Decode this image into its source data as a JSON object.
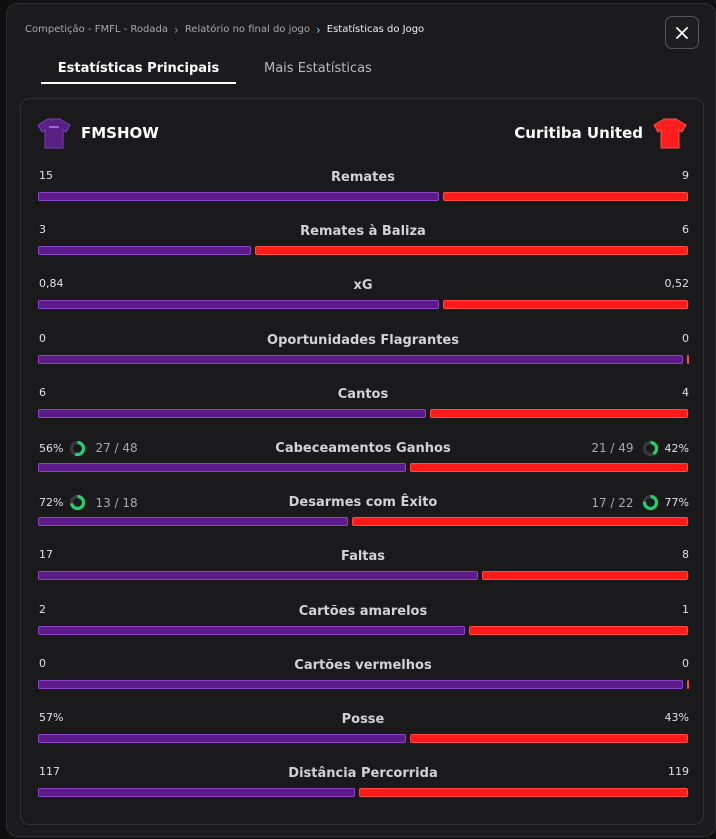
{
  "colors": {
    "home": "#5c1a8a",
    "away": "#ff1a1a",
    "ring_track": "#3a3a3e",
    "ring_fill": "#1fd46a"
  },
  "breadcrumb": [
    "Competição - FMFL - Rodada",
    "Relatório no final do jogo",
    "Estatísticas do Jogo"
  ],
  "tabs": [
    {
      "label": "Estatísticas Principais",
      "active": true
    },
    {
      "label": "Mais Estatísticas",
      "active": false
    }
  ],
  "teams": {
    "home": {
      "name": "FMSHOW",
      "shirt_color": "#5a1f86"
    },
    "away": {
      "name": "Curitiba United",
      "shirt_color": "#ff1d1d"
    }
  },
  "stats": [
    {
      "label": "Remates",
      "home": "15",
      "away": "9",
      "home_share": 0.62
    },
    {
      "label": "Remates à Baliza",
      "home": "3",
      "away": "6",
      "home_share": 0.33
    },
    {
      "label": "xG",
      "home": "0,84",
      "away": "0,52",
      "home_share": 0.62
    },
    {
      "label": "Oportunidades Flagrantes",
      "home": "0",
      "away": "0",
      "home_share": 0.995
    },
    {
      "label": "Cantos",
      "home": "6",
      "away": "4",
      "home_share": 0.6
    },
    {
      "label": "Cabeceamentos Ganhos",
      "home": "56%",
      "away": "42%",
      "home_frac": "27 / 48",
      "away_frac": "21 / 49",
      "home_ring": 0.56,
      "away_ring": 0.42,
      "home_share": 0.57
    },
    {
      "label": "Desarmes com Êxito",
      "home": "72%",
      "away": "77%",
      "home_frac": "13 / 18",
      "away_frac": "17 / 22",
      "home_ring": 0.72,
      "away_ring": 0.77,
      "home_share": 0.48
    },
    {
      "label": "Faltas",
      "home": "17",
      "away": "8",
      "home_share": 0.68
    },
    {
      "label": "Cartões amarelos",
      "home": "2",
      "away": "1",
      "home_share": 0.66
    },
    {
      "label": "Cartões vermelhos",
      "home": "0",
      "away": "0",
      "home_share": 0.995
    },
    {
      "label": "Posse",
      "home": "57%",
      "away": "43%",
      "home_share": 0.57
    },
    {
      "label": "Distância Percorrida",
      "home": "117",
      "away": "119",
      "home_share": 0.49
    }
  ]
}
